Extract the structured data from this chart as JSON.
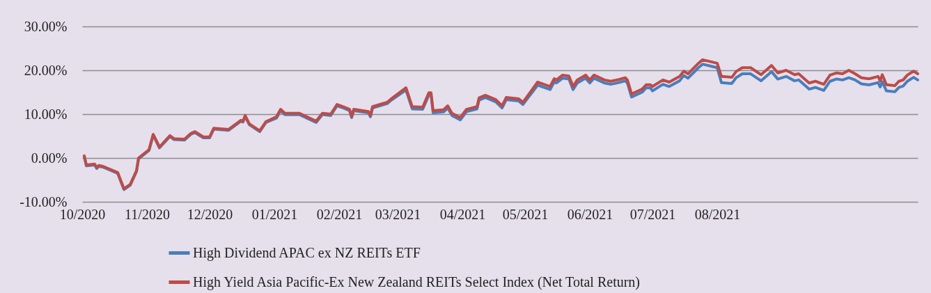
{
  "chart_data": {
    "type": "line",
    "x": [
      "2020-10-02",
      "2020-10-03",
      "2020-10-07",
      "2020-10-08",
      "2020-10-09",
      "2020-10-11",
      "2020-10-14",
      "2020-10-18",
      "2020-10-21",
      "2020-10-24",
      "2020-10-27",
      "2020-10-28",
      "2020-11-02",
      "2020-11-04",
      "2020-11-07",
      "2020-11-12",
      "2020-11-14",
      "2020-11-19",
      "2020-11-22",
      "2020-11-24",
      "2020-11-28",
      "2020-12-01",
      "2020-12-03",
      "2020-12-10",
      "2020-12-16",
      "2020-12-17",
      "2020-12-18",
      "2020-12-20",
      "2020-12-25",
      "2020-12-28",
      "2021-01-02",
      "2021-01-04",
      "2021-01-06",
      "2021-01-11",
      "2021-01-13",
      "2021-01-21",
      "2021-01-24",
      "2021-01-28",
      "2021-01-31",
      "2021-02-03",
      "2021-02-06",
      "2021-02-07",
      "2021-02-08",
      "2021-02-15",
      "2021-02-16",
      "2021-02-17",
      "2021-02-24",
      "2021-02-26",
      "2021-03-05",
      "2021-03-08",
      "2021-03-13",
      "2021-03-16",
      "2021-03-17",
      "2021-03-18",
      "2021-03-23",
      "2021-03-25",
      "2021-03-27",
      "2021-03-31",
      "2021-04-03",
      "2021-04-08",
      "2021-04-09",
      "2021-04-12",
      "2021-04-17",
      "2021-04-20",
      "2021-04-22",
      "2021-04-28",
      "2021-04-30",
      "2021-05-07",
      "2021-05-13",
      "2021-05-15",
      "2021-05-16",
      "2021-05-19",
      "2021-05-22",
      "2021-05-24",
      "2021-05-26",
      "2021-05-30",
      "2021-06-01",
      "2021-06-03",
      "2021-06-08",
      "2021-06-11",
      "2021-06-15",
      "2021-06-18",
      "2021-06-19",
      "2021-06-21",
      "2021-06-26",
      "2021-06-28",
      "2021-06-30",
      "2021-07-01",
      "2021-07-06",
      "2021-07-09",
      "2021-07-14",
      "2021-07-16",
      "2021-07-18",
      "2021-07-23",
      "2021-07-25",
      "2021-08-01",
      "2021-08-03",
      "2021-08-08",
      "2021-08-10",
      "2021-08-13",
      "2021-08-17",
      "2021-08-22",
      "2021-08-27",
      "2021-08-30",
      "2021-09-03",
      "2021-09-07",
      "2021-09-09",
      "2021-09-14",
      "2021-09-17",
      "2021-09-21",
      "2021-09-24",
      "2021-09-27",
      "2021-09-30",
      "2021-10-03",
      "2021-10-06",
      "2021-10-09",
      "2021-10-12",
      "2021-10-13",
      "2021-10-17",
      "2021-10-18",
      "2021-10-19",
      "2021-10-21",
      "2021-10-25",
      "2021-10-27",
      "2021-10-29",
      "2021-10-31",
      "2021-11-03",
      "2021-11-05"
    ],
    "series": [
      {
        "name": "High Dividend APAC ex NZ REITs ETF",
        "color": "#4a7ebb",
        "values": [
          0.3,
          -1.8,
          -1.6,
          -2.4,
          -1.9,
          -2.1,
          -2.7,
          -3.5,
          -7.2,
          -6.2,
          -3.1,
          -0.2,
          1.7,
          5.2,
          2.3,
          4.9,
          4.2,
          4.1,
          5.4,
          5.8,
          4.6,
          4.6,
          6.6,
          6.3,
          8.4,
          8.2,
          9.5,
          7.6,
          6.0,
          8.1,
          9.1,
          10.8,
          9.9,
          9.9,
          9.9,
          8.1,
          9.9,
          9.7,
          11.9,
          11.4,
          10.8,
          9.2,
          10.8,
          10.3,
          9.4,
          11.4,
          12.4,
          13.2,
          15.5,
          11.2,
          11.1,
          14.4,
          14.4,
          10.3,
          10.5,
          11.4,
          9.7,
          8.7,
          10.6,
          11.2,
          13.2,
          13.8,
          12.8,
          11.4,
          13.3,
          13.0,
          12.2,
          16.6,
          15.6,
          17.4,
          17.1,
          18.2,
          18.0,
          15.6,
          17.1,
          18.2,
          17.1,
          18.2,
          17.1,
          16.8,
          17.2,
          17.6,
          17.1,
          13.9,
          15.0,
          16.0,
          16.0,
          15.3,
          16.8,
          16.3,
          17.6,
          18.8,
          18.2,
          20.6,
          21.4,
          20.6,
          17.2,
          17.0,
          18.3,
          19.2,
          19.2,
          17.6,
          19.7,
          18.0,
          18.6,
          17.6,
          17.8,
          15.7,
          16.1,
          15.4,
          17.5,
          18.0,
          17.8,
          18.3,
          17.8,
          16.9,
          16.7,
          16.7,
          17.2,
          16.2,
          17.4,
          15.3,
          15.1,
          16.1,
          16.4,
          17.5,
          18.4,
          17.8
        ]
      },
      {
        "name": "High Yield Asia Pacific-Ex New Zealand REITs Select Index (Net Total Return)",
        "color": "#be4b48",
        "values": [
          0.5,
          -1.6,
          -1.4,
          -2.2,
          -1.7,
          -1.9,
          -2.5,
          -3.3,
          -7.0,
          -6.0,
          -2.9,
          0.0,
          1.9,
          5.4,
          2.5,
          5.1,
          4.4,
          4.3,
          5.6,
          6.0,
          4.8,
          4.8,
          6.8,
          6.5,
          8.6,
          8.4,
          9.7,
          7.8,
          6.2,
          8.3,
          9.4,
          11.1,
          10.2,
          10.2,
          10.2,
          8.4,
          10.2,
          10.0,
          12.2,
          11.7,
          11.1,
          9.5,
          11.1,
          10.6,
          9.7,
          11.7,
          12.7,
          13.5,
          16.0,
          11.7,
          11.6,
          14.9,
          14.9,
          10.8,
          11.0,
          11.9,
          10.2,
          9.2,
          11.1,
          11.7,
          13.7,
          14.3,
          13.3,
          11.9,
          13.8,
          13.5,
          12.7,
          17.3,
          16.3,
          18.1,
          17.8,
          18.9,
          18.7,
          16.3,
          17.8,
          18.9,
          17.8,
          18.9,
          17.8,
          17.5,
          17.9,
          18.3,
          17.8,
          14.6,
          15.7,
          16.7,
          16.7,
          16.3,
          17.8,
          17.3,
          18.6,
          19.8,
          19.2,
          21.6,
          22.4,
          21.6,
          18.6,
          18.4,
          19.7,
          20.6,
          20.6,
          19.0,
          21.1,
          19.4,
          20.0,
          19.0,
          19.2,
          17.1,
          17.5,
          16.8,
          18.9,
          19.4,
          19.2,
          20.0,
          19.2,
          18.3,
          18.1,
          18.1,
          18.6,
          17.6,
          19.0,
          16.7,
          16.5,
          17.5,
          17.8,
          18.9,
          19.8,
          19.2
        ]
      }
    ],
    "ylim": [
      -10,
      30
    ],
    "yticks": [
      {
        "value": -10,
        "label": "-10.00%"
      },
      {
        "value": 0,
        "label": "0.00%"
      },
      {
        "value": 10,
        "label": "10.00%"
      },
      {
        "value": 20,
        "label": "20.00%"
      },
      {
        "value": 30,
        "label": "30.00%"
      }
    ],
    "xlim": [
      "2020-10-01",
      "2021-11-05"
    ],
    "xticks": [
      {
        "value": "2020-10-01",
        "label": "10/2020"
      },
      {
        "value": "2020-11-01",
        "label": "11/2020"
      },
      {
        "value": "2020-12-01",
        "label": "12/2020"
      },
      {
        "value": "2021-01-01",
        "label": "01/2021"
      },
      {
        "value": "2021-02-01",
        "label": "02/2021"
      },
      {
        "value": "2021-03-01",
        "label": "03/2021"
      },
      {
        "value": "2021-04-01",
        "label": "04/2021"
      },
      {
        "value": "2021-05-01",
        "label": "05/2021"
      },
      {
        "value": "2021-06-01",
        "label": "06/2021"
      },
      {
        "value": "2021-07-01",
        "label": "07/2021"
      },
      {
        "value": "2021-08-01",
        "label": "08/2021"
      }
    ],
    "grid": "y",
    "legend": "bottom",
    "marker": "none",
    "line_style": "solid"
  }
}
